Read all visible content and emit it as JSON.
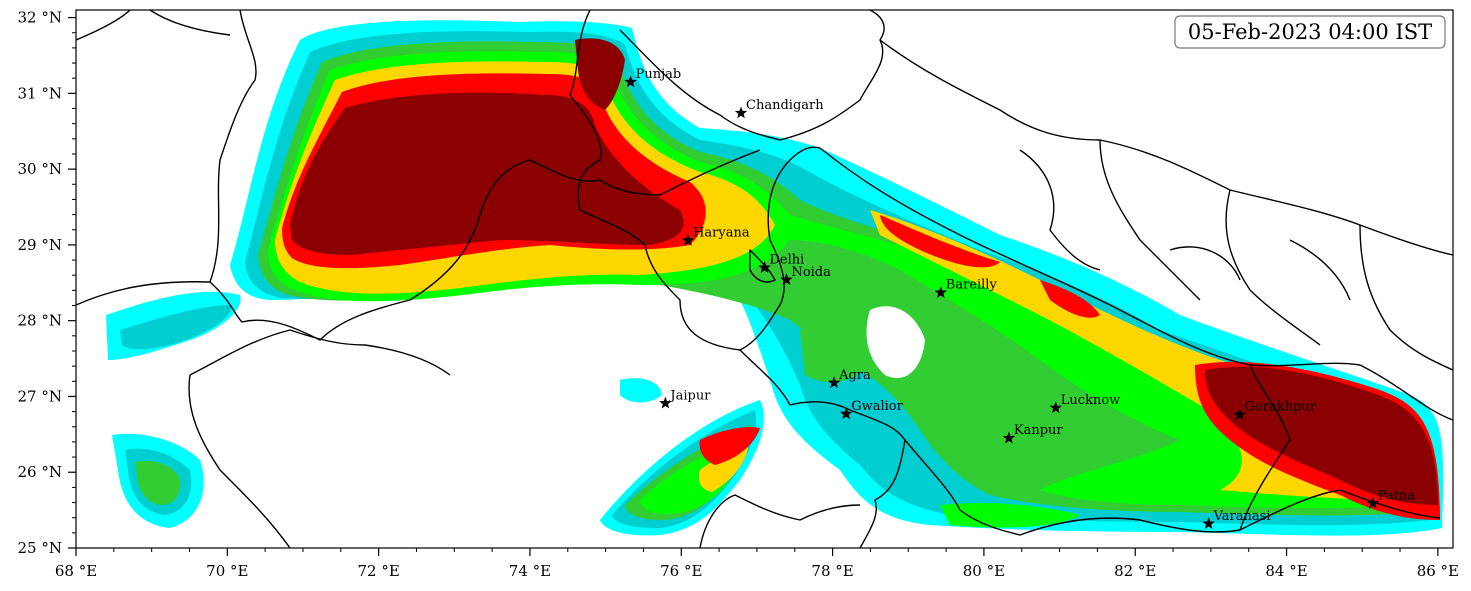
{
  "timestamp": "05-Feb-2023 04:00 IST",
  "axes": {
    "lon_ticks": [
      "68 °E",
      "70 °E",
      "72 °E",
      "74 °E",
      "76 °E",
      "78 °E",
      "80 °E",
      "82 °E",
      "84 °E",
      "86 °E"
    ],
    "lat_ticks": [
      "32 °N",
      "31 °N",
      "30 °N",
      "29 °N",
      "28 °N",
      "27 °N",
      "26 °N",
      "25 °N"
    ],
    "lon_range": [
      68,
      86.2
    ],
    "lat_range": [
      25,
      32.1
    ]
  },
  "cities": [
    {
      "name": "Punjab",
      "lon": 75.33,
      "lat": 31.15
    },
    {
      "name": "Chandigarh",
      "lon": 76.79,
      "lat": 30.74
    },
    {
      "name": "Haryana",
      "lon": 76.09,
      "lat": 29.06
    },
    {
      "name": "Delhi",
      "lon": 77.1,
      "lat": 28.7
    },
    {
      "name": "Noida",
      "lon": 77.39,
      "lat": 28.54
    },
    {
      "name": "Bareilly",
      "lon": 79.43,
      "lat": 28.37
    },
    {
      "name": "Agra",
      "lon": 78.02,
      "lat": 27.18
    },
    {
      "name": "Jaipur",
      "lon": 75.79,
      "lat": 26.91
    },
    {
      "name": "Gwalior",
      "lon": 78.18,
      "lat": 26.77
    },
    {
      "name": "Lucknow",
      "lon": 80.95,
      "lat": 26.85
    },
    {
      "name": "Kanpur",
      "lon": 80.33,
      "lat": 26.45
    },
    {
      "name": "Gorakhpur",
      "lon": 83.38,
      "lat": 26.76
    },
    {
      "name": "Patna",
      "lon": 85.14,
      "lat": 25.59
    },
    {
      "name": "Varanasi",
      "lon": 82.97,
      "lat": 25.32
    }
  ],
  "colors": {
    "level1": "#00ffff",
    "level2": "#00ced1",
    "level3": "#32cd32",
    "level4": "#00ff00",
    "level5": "#ffd700",
    "level6": "#ff0000",
    "level7": "#8b0000",
    "border": "#000000",
    "marker": "#000000"
  }
}
